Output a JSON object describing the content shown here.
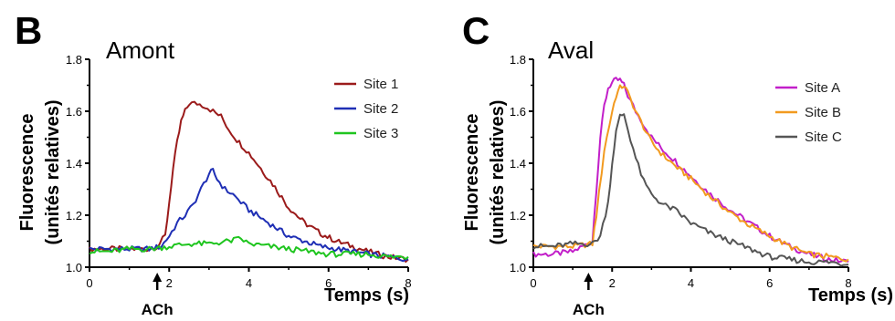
{
  "chart_data": [
    {
      "type": "line",
      "panel_letter": "B",
      "title": "Amont",
      "ylabel_line1": "Fluorescence",
      "ylabel_line2": "(unités relatives)",
      "xlabel": "Temps (s)",
      "stimulus_label": "ACh",
      "stimulus_time": 1.7,
      "xlim": [
        0,
        8
      ],
      "ylim": [
        1.0,
        1.8
      ],
      "xticks": [
        0,
        2,
        4,
        6,
        8
      ],
      "yticks": [
        1.0,
        1.2,
        1.4,
        1.6,
        1.8
      ],
      "ytick_labels": [
        "1.0",
        "1.2",
        "1.4",
        "1.6",
        "1.8"
      ],
      "legend_position": "top-right",
      "series": [
        {
          "name": "Site 1",
          "color": "#9b1b1b",
          "x": [
            0,
            0.5,
            1.0,
            1.5,
            1.7,
            1.9,
            2.0,
            2.1,
            2.2,
            2.3,
            2.4,
            2.5,
            2.7,
            2.9,
            3.1,
            3.3,
            3.5,
            3.7,
            4.0,
            4.3,
            4.6,
            5.0,
            5.4,
            5.8,
            6.2,
            6.6,
            7.0,
            7.5,
            8.0
          ],
          "y": [
            1.07,
            1.07,
            1.07,
            1.07,
            1.08,
            1.12,
            1.25,
            1.38,
            1.48,
            1.56,
            1.6,
            1.63,
            1.63,
            1.62,
            1.6,
            1.58,
            1.53,
            1.49,
            1.44,
            1.38,
            1.32,
            1.23,
            1.17,
            1.13,
            1.1,
            1.08,
            1.06,
            1.04,
            1.03
          ]
        },
        {
          "name": "Site 2",
          "color": "#1f2fb5",
          "x": [
            0,
            0.5,
            1.0,
            1.5,
            1.8,
            2.0,
            2.2,
            2.4,
            2.6,
            2.8,
            3.0,
            3.1,
            3.2,
            3.4,
            3.6,
            3.8,
            4.0,
            4.3,
            4.6,
            5.0,
            5.4,
            5.8,
            6.2,
            6.6,
            7.0,
            7.5,
            8.0
          ],
          "y": [
            1.07,
            1.07,
            1.07,
            1.07,
            1.08,
            1.12,
            1.17,
            1.2,
            1.24,
            1.3,
            1.36,
            1.37,
            1.34,
            1.3,
            1.28,
            1.25,
            1.22,
            1.19,
            1.16,
            1.12,
            1.1,
            1.08,
            1.07,
            1.06,
            1.05,
            1.04,
            1.03
          ]
        },
        {
          "name": "Site 3",
          "color": "#1fc51f",
          "x": [
            0,
            0.5,
            1.0,
            1.5,
            2.0,
            2.5,
            3.0,
            3.5,
            3.8,
            4.0,
            4.5,
            5.0,
            5.5,
            6.0,
            6.5,
            7.0,
            7.5,
            8.0
          ],
          "y": [
            1.06,
            1.06,
            1.07,
            1.07,
            1.08,
            1.09,
            1.09,
            1.1,
            1.11,
            1.09,
            1.08,
            1.07,
            1.06,
            1.05,
            1.05,
            1.05,
            1.04,
            1.04
          ]
        }
      ]
    },
    {
      "type": "line",
      "panel_letter": "C",
      "title": "Aval",
      "ylabel_line1": "Fluorescence",
      "ylabel_line2": "(unités relatives)",
      "xlabel": "Temps (s)",
      "stimulus_label": "ACh",
      "stimulus_time": 1.4,
      "xlim": [
        0,
        8
      ],
      "ylim": [
        1.0,
        1.8
      ],
      "xticks": [
        0,
        2,
        4,
        6,
        8
      ],
      "yticks": [
        1.0,
        1.2,
        1.4,
        1.6,
        1.8
      ],
      "ytick_labels": [
        "1.0",
        "1.2",
        "1.4",
        "1.6",
        "1.8"
      ],
      "legend_position": "top-right",
      "series": [
        {
          "name": "Site A",
          "color": "#c21fc9",
          "x": [
            0,
            0.5,
            1.0,
            1.5,
            1.6,
            1.7,
            1.8,
            1.9,
            2.0,
            2.1,
            2.2,
            2.3,
            2.4,
            2.6,
            2.8,
            3.0,
            3.3,
            3.6,
            4.0,
            4.5,
            5.0,
            5.5,
            6.0,
            6.5,
            7.0,
            7.5,
            8.0
          ],
          "y": [
            1.05,
            1.05,
            1.06,
            1.1,
            1.3,
            1.5,
            1.62,
            1.69,
            1.71,
            1.72,
            1.72,
            1.7,
            1.66,
            1.6,
            1.55,
            1.5,
            1.45,
            1.41,
            1.35,
            1.28,
            1.22,
            1.17,
            1.12,
            1.08,
            1.05,
            1.03,
            1.02
          ]
        },
        {
          "name": "Site B",
          "color": "#f29a1f",
          "x": [
            0,
            0.5,
            1.0,
            1.5,
            1.6,
            1.8,
            2.0,
            2.1,
            2.2,
            2.3,
            2.4,
            2.6,
            2.8,
            3.0,
            3.3,
            3.6,
            4.0,
            4.5,
            5.0,
            5.5,
            6.0,
            6.5,
            7.0,
            7.5,
            8.0
          ],
          "y": [
            1.08,
            1.08,
            1.08,
            1.09,
            1.2,
            1.45,
            1.6,
            1.66,
            1.69,
            1.7,
            1.67,
            1.6,
            1.54,
            1.48,
            1.43,
            1.39,
            1.34,
            1.27,
            1.21,
            1.16,
            1.12,
            1.08,
            1.05,
            1.04,
            1.03
          ]
        },
        {
          "name": "Site C",
          "color": "#555555",
          "x": [
            0,
            0.5,
            1.0,
            1.5,
            1.7,
            1.9,
            2.0,
            2.1,
            2.2,
            2.3,
            2.4,
            2.6,
            2.8,
            3.0,
            3.3,
            3.6,
            4.0,
            4.5,
            5.0,
            5.5,
            6.0,
            6.5,
            7.0,
            7.5,
            8.0
          ],
          "y": [
            1.08,
            1.08,
            1.09,
            1.09,
            1.12,
            1.25,
            1.4,
            1.52,
            1.58,
            1.59,
            1.53,
            1.42,
            1.33,
            1.28,
            1.24,
            1.22,
            1.17,
            1.13,
            1.1,
            1.07,
            1.04,
            1.03,
            1.02,
            1.02,
            1.01
          ]
        }
      ]
    }
  ]
}
